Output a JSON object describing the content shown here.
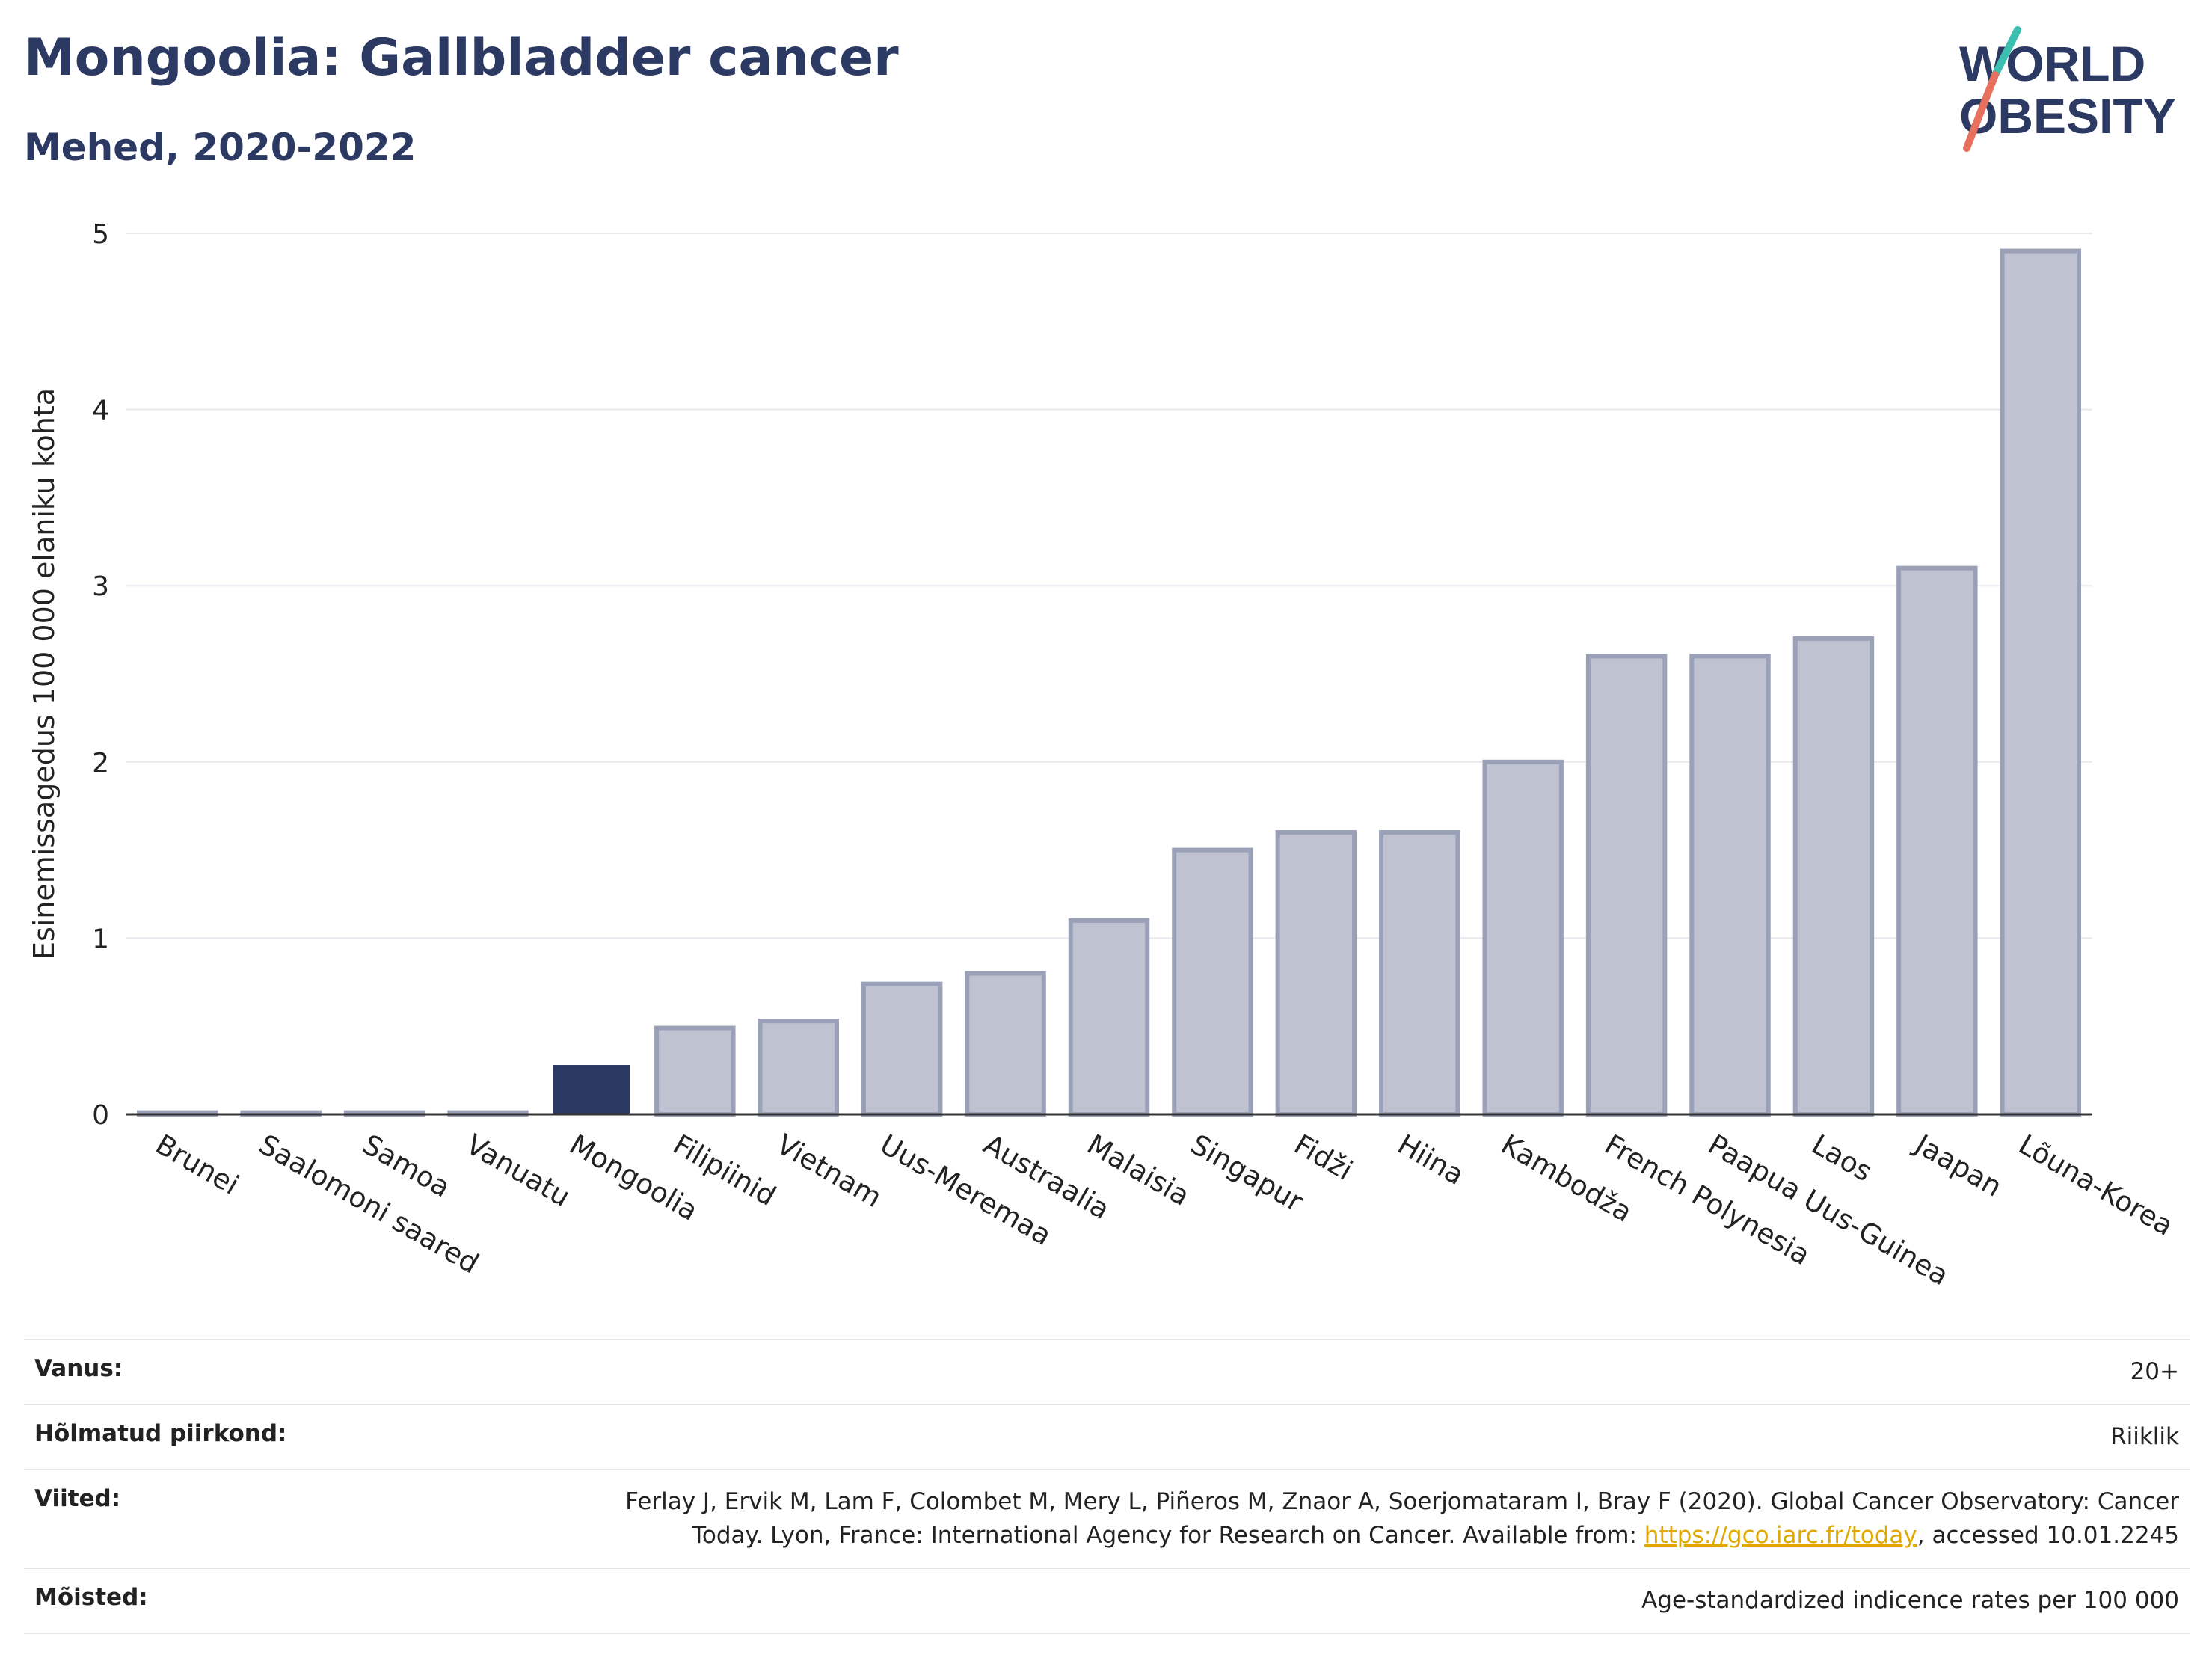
{
  "header": {
    "title": "Mongoolia: Gallbladder cancer",
    "subtitle": "Mehed, 2020-2022"
  },
  "logo": {
    "line1": "WORLD",
    "line2": "OBESITY"
  },
  "colors": {
    "highlight": "#2c3a63",
    "bar": "#bfc2d0",
    "bar_border": "#9aa0b8",
    "title": "#2c3a63"
  },
  "chart_data": {
    "type": "bar",
    "ylabel": "Esinemissagedus 100 000 elaniku kohta",
    "ylim": [
      0,
      5
    ],
    "yticks": [
      0,
      1,
      2,
      3,
      4,
      5
    ],
    "grid": true,
    "highlight": "Mongoolia",
    "categories": [
      "Brunei",
      "Saalomoni saared",
      "Samoa",
      "Vanuatu",
      "Mongoolia",
      "Filipiinid",
      "Vietnam",
      "Uus-Meremaa",
      "Austraalia",
      "Malaisia",
      "Singapur",
      "Fidži",
      "Hiina",
      "Kambodža",
      "French Polynesia",
      "Paapua Uus-Guinea",
      "Laos",
      "Jaapan",
      "Lõuna-Korea"
    ],
    "values": [
      0.01,
      0.01,
      0.01,
      0.01,
      0.28,
      0.49,
      0.53,
      0.74,
      0.8,
      1.1,
      1.5,
      1.6,
      1.6,
      2.0,
      2.6,
      2.6,
      2.7,
      3.1,
      4.9
    ]
  },
  "meta": {
    "age_label": "Vanus:",
    "age_value": "20+",
    "region_label": "Hõlmatud piirkond:",
    "region_value": "Riiklik",
    "refs_label": "Viited:",
    "refs_line1": "Ferlay J, Ervik M, Lam F, Colombet M, Mery L, Piñeros M, Znaor A, Soerjomataram I, Bray F (2020). Global Cancer Observatory: Cancer",
    "refs_line2_pre": "Today. Lyon, France: International Agency for Research on Cancer. Available from: ",
    "refs_link": "https://gco.iarc.fr/today",
    "refs_line2_post": ", accessed 10.01.2245",
    "def_label": "Mõisted:",
    "def_value": "Age-standardized indicence rates per 100 000"
  }
}
